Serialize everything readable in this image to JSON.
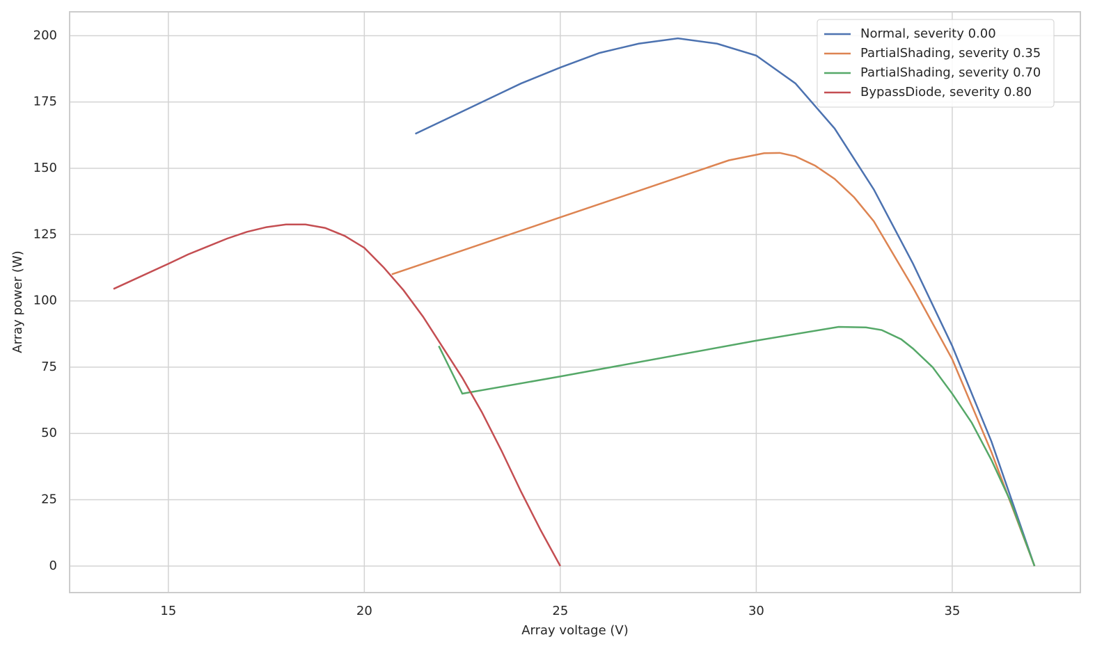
{
  "chart_data": {
    "type": "line",
    "x_label": "Array voltage (V)",
    "y_label": "Array power (W)",
    "xlim": [
      12.48,
      38.27
    ],
    "ylim": [
      -10,
      209
    ],
    "xticks": [
      15,
      20,
      25,
      30,
      35
    ],
    "yticks": [
      0,
      25,
      50,
      75,
      100,
      125,
      150,
      175,
      200
    ],
    "grid": true,
    "legend": "upper right",
    "series": [
      {
        "name": "Normal, severity 0.00",
        "color": "#4c72b0",
        "x": [
          21.3,
          24,
          25,
          26,
          27,
          28,
          29,
          30,
          31,
          32,
          33,
          34,
          35,
          36,
          37.1
        ],
        "values": [
          163,
          182,
          188,
          193.5,
          197,
          199,
          197,
          192.5,
          182,
          165,
          142,
          114,
          83,
          47,
          0
        ]
      },
      {
        "name": "PartialShading, severity 0.35",
        "color": "#dd8452",
        "x": [
          20.7,
          25,
          29.3,
          30.2,
          30.6,
          31,
          31.5,
          32,
          32.5,
          33,
          34,
          35,
          36,
          37.1
        ],
        "values": [
          110,
          131.5,
          153,
          155.7,
          155.8,
          154.5,
          151,
          146,
          139,
          130,
          105,
          78,
          43,
          0
        ]
      },
      {
        "name": "PartialShading, severity 0.70",
        "color": "#55a868",
        "x": [
          21.9,
          22.5,
          25,
          30,
          32.1,
          32.8,
          33.2,
          33.7,
          34,
          34.5,
          35,
          35.5,
          36,
          36.5,
          37.1
        ],
        "values": [
          83,
          65,
          71.5,
          85,
          90.2,
          90,
          89,
          85.5,
          82,
          75,
          65,
          54,
          40,
          24,
          0
        ]
      },
      {
        "name": "BypassDiode, severity 0.80",
        "color": "#c44e52",
        "x": [
          13.6,
          15,
          15.5,
          16,
          16.5,
          17,
          17.5,
          18,
          18.5,
          19,
          19.5,
          20,
          20.5,
          21,
          21.5,
          22,
          22.5,
          23,
          23.5,
          24,
          24.5,
          25
        ],
        "values": [
          104.5,
          114,
          117.5,
          120.5,
          123.5,
          126,
          127.8,
          128.8,
          128.8,
          127.5,
          124.5,
          120,
          112.5,
          104,
          94,
          82.5,
          71,
          58,
          43.5,
          28,
          13.5,
          0
        ]
      }
    ]
  }
}
